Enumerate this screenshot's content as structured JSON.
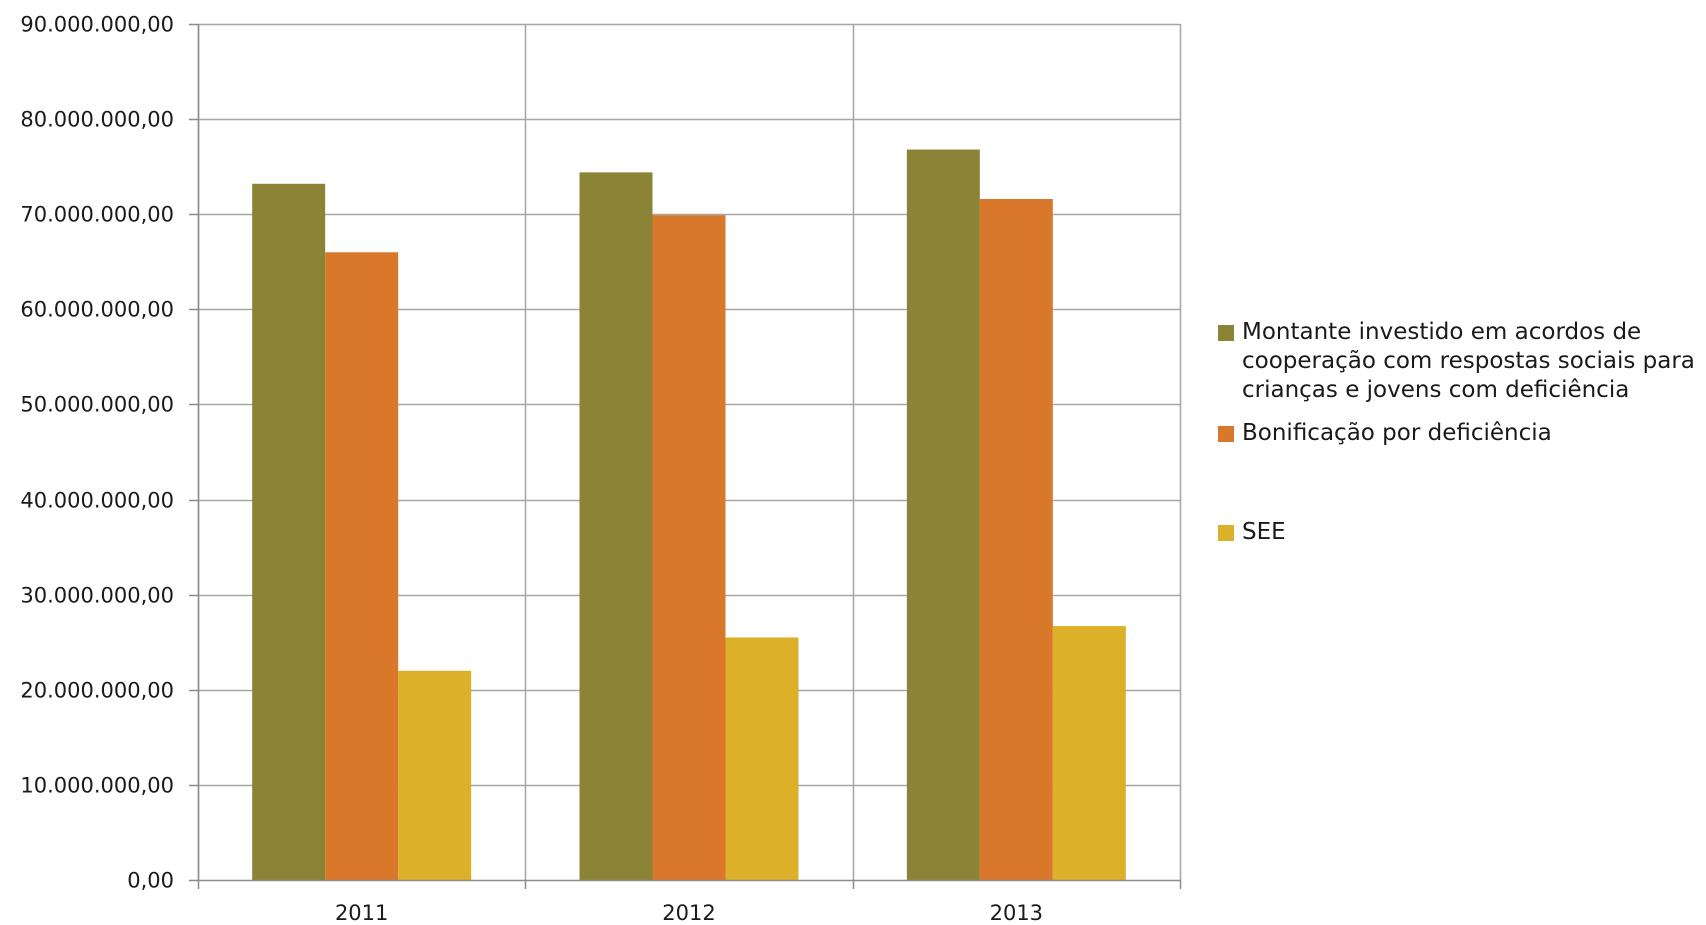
{
  "chart_data": {
    "type": "bar",
    "categories": [
      "2011",
      "2012",
      "2013"
    ],
    "series": [
      {
        "name": "Montante investido em acordos de cooperação com respostas sociais para crianças e jovens com deficiência",
        "color": "#8b8335",
        "values": [
          73200000,
          74400000,
          76800000
        ]
      },
      {
        "name": "Bonificação por deficiência",
        "color": "#d9782a",
        "values": [
          66000000,
          69900000,
          71600000
        ]
      },
      {
        "name": "SEE",
        "color": "#ddb02a",
        "values": [
          22000000,
          25500000,
          26700000
        ]
      }
    ],
    "ylim": [
      0,
      90000000
    ],
    "yticks": [
      "0,00",
      "10.000.000,00",
      "20.000.000,00",
      "30.000.000,00",
      "40.000.000,00",
      "50.000.000,00",
      "60.000.000,00",
      "70.000.000,00",
      "80.000.000,00",
      "90.000.000,00"
    ],
    "grid": true,
    "legend_position": "right",
    "title": "",
    "xlabel": "",
    "ylabel": ""
  }
}
